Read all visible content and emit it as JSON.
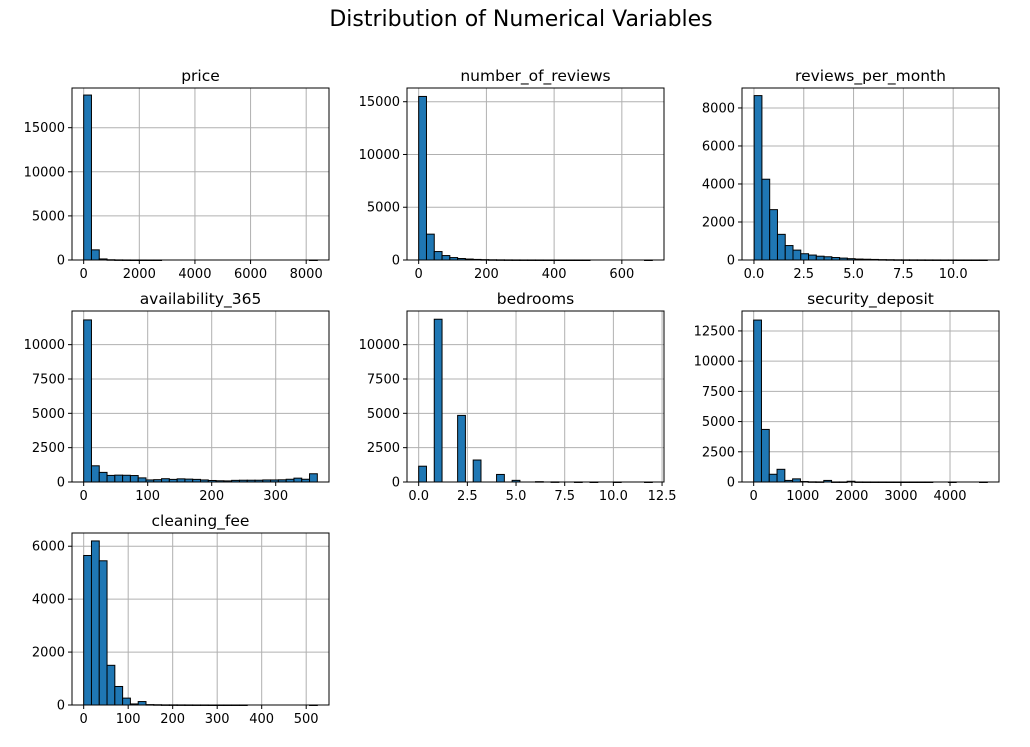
{
  "figure": {
    "title": "Distribution of Numerical Variables"
  },
  "colors": {
    "bar_fill": "#1f77b4",
    "bar_edge": "#000000",
    "grid": "#b0b0b0",
    "background": "#ffffff"
  },
  "chart_data": [
    {
      "type": "bar",
      "title": "price",
      "xlabel": "",
      "ylabel": "",
      "grid": true,
      "xlim": [
        -420,
        8820
      ],
      "ylim": [
        0,
        19500
      ],
      "xticks": [
        0,
        2000,
        4000,
        6000,
        8000
      ],
      "xtick_labels": [
        "0",
        "2000",
        "4000",
        "6000",
        "8000"
      ],
      "yticks": [
        0,
        5000,
        10000,
        15000
      ],
      "ytick_labels": [
        "0",
        "5000",
        "10000",
        "15000"
      ],
      "bin_edges_start": 0,
      "bin_width": 280,
      "counts": [
        18700,
        1150,
        120,
        30,
        12,
        6,
        3,
        2,
        1,
        1,
        0,
        0,
        0,
        0,
        0,
        0,
        0,
        0,
        0,
        0,
        0,
        0,
        0,
        0,
        0,
        0,
        0,
        0,
        0,
        1
      ]
    },
    {
      "type": "bar",
      "title": "number_of_reviews",
      "xlabel": "",
      "ylabel": "",
      "grid": true,
      "xlim": [
        -34.5,
        724.5
      ],
      "ylim": [
        0,
        16300
      ],
      "xticks": [
        0,
        200,
        400,
        600
      ],
      "xtick_labels": [
        "0",
        "200",
        "400",
        "600"
      ],
      "yticks": [
        0,
        5000,
        10000,
        15000
      ],
      "ytick_labels": [
        "0",
        "5000",
        "10000",
        "15000"
      ],
      "bin_edges_start": 0,
      "bin_width": 23,
      "counts": [
        15500,
        2450,
        800,
        420,
        230,
        140,
        90,
        55,
        35,
        22,
        15,
        10,
        7,
        5,
        4,
        3,
        2,
        2,
        1,
        1,
        1,
        1,
        0,
        0,
        0,
        0,
        0,
        0,
        0,
        1
      ]
    },
    {
      "type": "bar",
      "title": "reviews_per_month",
      "xlabel": "",
      "ylabel": "",
      "grid": true,
      "xlim": [
        -0.6,
        12.3
      ],
      "ylim": [
        0,
        9050
      ],
      "xticks": [
        0,
        2.5,
        5,
        7.5,
        10
      ],
      "xtick_labels": [
        "0.0",
        "2.5",
        "5.0",
        "7.5",
        "10.0"
      ],
      "yticks": [
        0,
        2000,
        4000,
        6000,
        8000
      ],
      "ytick_labels": [
        "0",
        "2000",
        "4000",
        "6000",
        "8000"
      ],
      "bin_edges_start": 0.01,
      "bin_width": 0.39,
      "counts": [
        8650,
        4250,
        2650,
        1350,
        760,
        520,
        330,
        260,
        200,
        170,
        130,
        100,
        70,
        50,
        40,
        30,
        20,
        15,
        10,
        8,
        6,
        5,
        4,
        3,
        2,
        2,
        1,
        1,
        1,
        1
      ]
    },
    {
      "type": "bar",
      "title": "availability_365",
      "xlabel": "",
      "ylabel": "",
      "grid": true,
      "xlim": [
        -18.25,
        383.25
      ],
      "ylim": [
        0,
        12450
      ],
      "xticks": [
        0,
        100,
        200,
        300
      ],
      "xtick_labels": [
        "0",
        "100",
        "200",
        "300"
      ],
      "yticks": [
        0,
        2500,
        5000,
        7500,
        10000
      ],
      "ytick_labels": [
        "0",
        "2500",
        "5000",
        "7500",
        "10000"
      ],
      "bin_edges_start": 0,
      "bin_width": 12.1667,
      "counts": [
        11800,
        1180,
        700,
        480,
        500,
        490,
        470,
        300,
        150,
        170,
        240,
        190,
        230,
        210,
        190,
        150,
        110,
        90,
        80,
        120,
        130,
        130,
        130,
        150,
        150,
        160,
        200,
        280,
        200,
        600
      ]
    },
    {
      "type": "bar",
      "title": "bedrooms",
      "xlabel": "",
      "ylabel": "",
      "grid": true,
      "xlim": [
        -0.6,
        12.6
      ],
      "ylim": [
        0,
        12450
      ],
      "xticks": [
        0,
        2.5,
        5,
        7.5,
        10,
        12.5
      ],
      "xtick_labels": [
        "0.0",
        "2.5",
        "5.0",
        "7.5",
        "10.0",
        "12.5"
      ],
      "yticks": [
        0,
        2500,
        5000,
        7500,
        10000
      ],
      "ytick_labels": [
        "0",
        "2500",
        "5000",
        "7500",
        "10000"
      ],
      "bin_edges_start": 0,
      "bin_width": 0.4,
      "counts": [
        1150,
        0,
        11850,
        0,
        0,
        4850,
        0,
        1600,
        0,
        0,
        550,
        0,
        120,
        0,
        0,
        25,
        0,
        8,
        0,
        0,
        3,
        0,
        1,
        0,
        0,
        1,
        0,
        0,
        0,
        1
      ]
    },
    {
      "type": "bar",
      "title": "security_deposit",
      "xlabel": "",
      "ylabel": "",
      "grid": true,
      "xlim": [
        -238,
        4998
      ],
      "ylim": [
        0,
        14150
      ],
      "xticks": [
        0,
        1000,
        2000,
        3000,
        4000
      ],
      "xtick_labels": [
        "0",
        "1000",
        "2000",
        "3000",
        "4000"
      ],
      "yticks": [
        0,
        2500,
        5000,
        7500,
        10000,
        12500
      ],
      "ytick_labels": [
        "0",
        "2500",
        "5000",
        "7500",
        "10000",
        "12500"
      ],
      "bin_edges_start": 0,
      "bin_width": 158.67,
      "counts": [
        13400,
        4350,
        640,
        1050,
        130,
        260,
        40,
        15,
        10,
        130,
        5,
        5,
        60,
        5,
        3,
        2,
        2,
        1,
        1,
        1,
        1,
        1,
        1,
        0,
        0,
        1,
        0,
        0,
        0,
        1
      ]
    },
    {
      "type": "bar",
      "title": "cleaning_fee",
      "xlabel": "",
      "ylabel": "",
      "grid": true,
      "xlim": [
        -26.25,
        551.25
      ],
      "ylim": [
        0,
        6500
      ],
      "xticks": [
        0,
        100,
        200,
        300,
        400,
        500
      ],
      "xtick_labels": [
        "0",
        "100",
        "200",
        "300",
        "400",
        "500"
      ],
      "yticks": [
        0,
        2000,
        4000,
        6000
      ],
      "ytick_labels": [
        "0",
        "2000",
        "4000",
        "6000"
      ],
      "bin_edges_start": 0,
      "bin_width": 17.5,
      "counts": [
        5650,
        6200,
        5450,
        1500,
        700,
        260,
        40,
        130,
        15,
        10,
        5,
        5,
        4,
        3,
        2,
        2,
        1,
        1,
        1,
        1,
        1,
        0,
        0,
        0,
        0,
        0,
        0,
        0,
        0,
        1
      ]
    }
  ]
}
